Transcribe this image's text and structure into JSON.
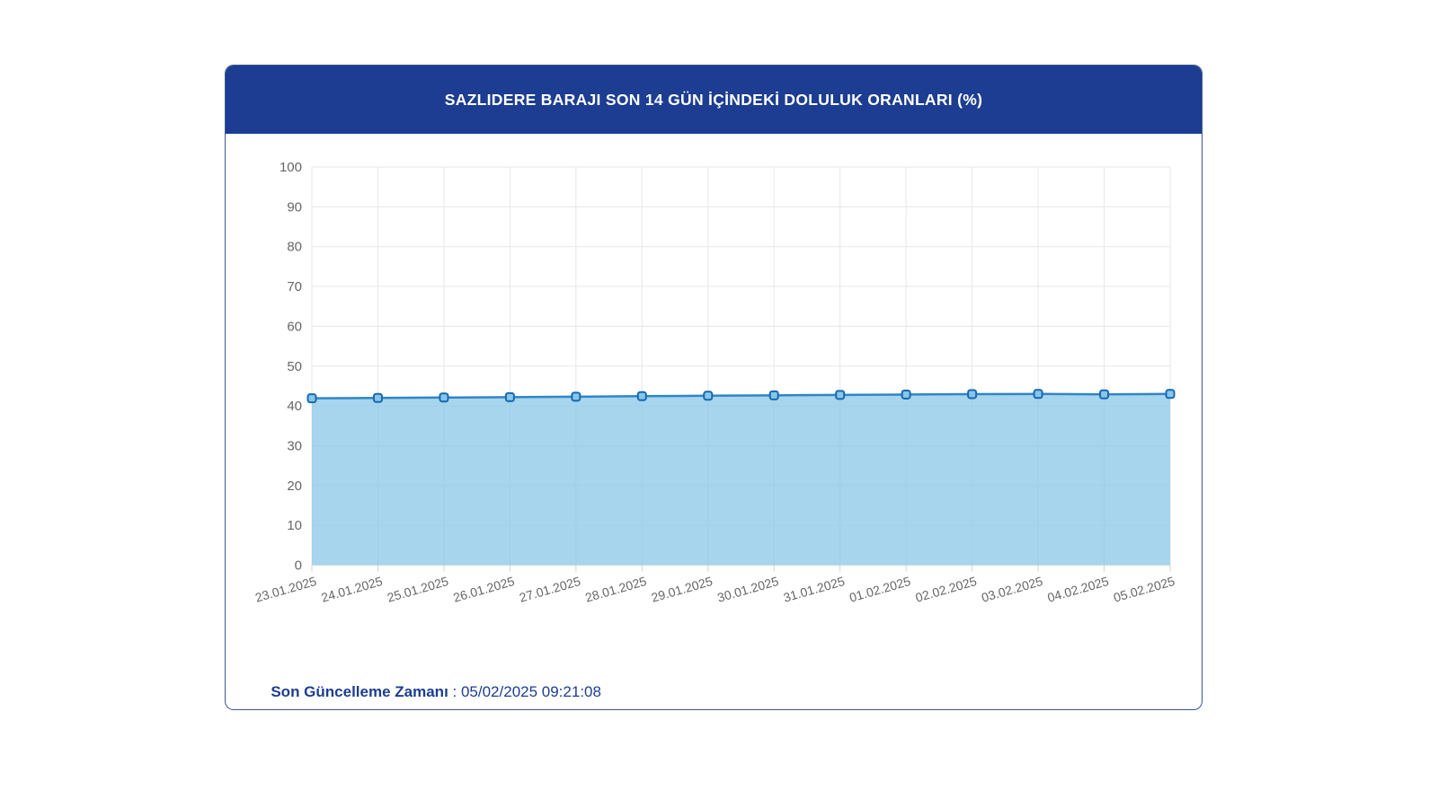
{
  "header": {
    "title": "SAZLIDERE BARAJI SON 14 GÜN İÇİNDEKİ DOLULUK ORANLARI (%)"
  },
  "footer": {
    "label": "Son Güncelleme Zamanı",
    "separator": " : ",
    "value": "05/02/2025 09:21:08"
  },
  "colors": {
    "header_bg": "#1c3d91",
    "card_border": "#3a5692",
    "line": "#2f86c7",
    "area_fill": "rgba(138,199,232,0.75)",
    "marker_fill": "#85c6ea",
    "marker_stroke": "#1a68ae",
    "grid": "#e7e7e7",
    "tick": "#d2d2d2",
    "axis_label": "#666666",
    "footer_text": "#1c3d91"
  },
  "chart_data": {
    "type": "area",
    "title": "SAZLIDERE BARAJI SON 14 GÜN İÇİNDEKİ DOLULUK ORANLARI (%)",
    "categories": [
      "23.01.2025",
      "24.01.2025",
      "25.01.2025",
      "26.01.2025",
      "27.01.2025",
      "28.01.2025",
      "29.01.2025",
      "30.01.2025",
      "31.01.2025",
      "01.02.2025",
      "02.02.2025",
      "03.02.2025",
      "04.02.2025",
      "05.02.2025"
    ],
    "values": [
      41.9,
      42.0,
      42.1,
      42.2,
      42.3,
      42.45,
      42.55,
      42.65,
      42.75,
      42.85,
      42.95,
      43.0,
      42.9,
      43.0
    ],
    "xlabel": "",
    "ylabel": "",
    "ylim": [
      0,
      100
    ],
    "ytick_step": 10,
    "grid": "on",
    "legend": "none",
    "xlabel_rotation_deg": -16
  }
}
